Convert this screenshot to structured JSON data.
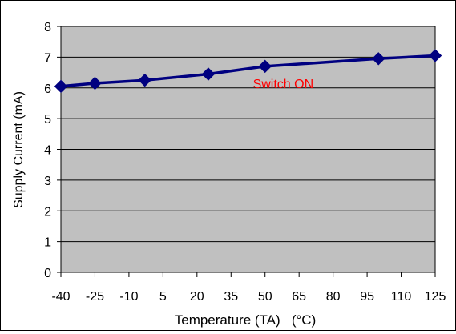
{
  "chart_data": {
    "type": "line",
    "xlabel": "Temperature (TA)   (°C)",
    "ylabel": "Supply Current (mA)",
    "x_ticks": [
      -40,
      -25,
      -10,
      5,
      20,
      35,
      50,
      65,
      80,
      95,
      110,
      125
    ],
    "y_ticks": [
      0,
      1,
      2,
      3,
      4,
      5,
      6,
      7,
      8
    ],
    "xlim": [
      -40,
      125
    ],
    "ylim": [
      0,
      8
    ],
    "grid": "horizontal",
    "series": [
      {
        "name": "",
        "color": "#000080",
        "marker": "diamond",
        "points": [
          {
            "x": -40,
            "y": 6.05
          },
          {
            "x": -25,
            "y": 6.15
          },
          {
            "x": -3,
            "y": 6.25
          },
          {
            "x": 25,
            "y": 6.45
          },
          {
            "x": 50,
            "y": 6.7
          },
          {
            "x": 100,
            "y": 6.95
          },
          {
            "x": 125,
            "y": 7.05
          }
        ]
      }
    ],
    "annotations": [
      {
        "text": "Switch ON",
        "x": 58,
        "y": 6.15,
        "color": "#ff0000"
      }
    ],
    "plot_background": "#c0c0c0"
  }
}
